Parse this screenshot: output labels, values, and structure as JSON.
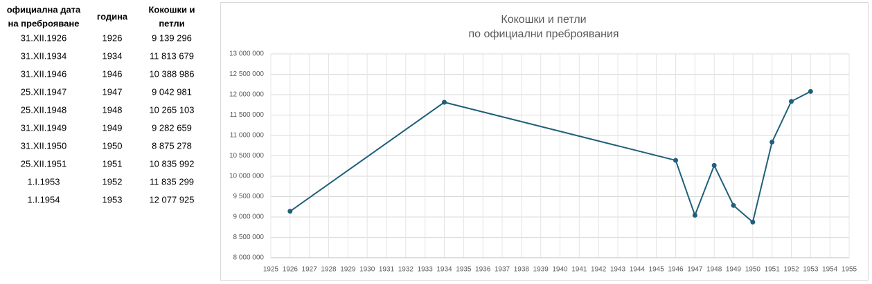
{
  "table": {
    "header": [
      [
        "официална дата",
        "на преброяване"
      ],
      [
        "година"
      ],
      [
        "Кокошки и",
        "петли"
      ]
    ],
    "rows": [
      [
        "31.XII.1926",
        "1926",
        "9 139 296"
      ],
      [
        "31.XII.1934",
        "1934",
        "11 813 679"
      ],
      [
        "31.XII.1946",
        "1946",
        "10 388 986"
      ],
      [
        "25.XII.1947",
        "1947",
        "9 042 981"
      ],
      [
        "25.XII.1948",
        "1948",
        "10 265 103"
      ],
      [
        "31.XII.1949",
        "1949",
        "9 282 659"
      ],
      [
        "31.XII.1950",
        "1950",
        "8 875 278"
      ],
      [
        "25.XII.1951",
        "1951",
        "10 835 992"
      ],
      [
        "1.I.1953",
        "1952",
        "11 835 299"
      ],
      [
        "1.I.1954",
        "1953",
        "12 077 925"
      ]
    ]
  },
  "chart_data": {
    "type": "line",
    "title": "Кокошки и петли",
    "subtitle": "по официални преброявания",
    "x": [
      1926,
      1934,
      1946,
      1947,
      1948,
      1949,
      1950,
      1951,
      1952,
      1953
    ],
    "series": [
      {
        "color": "#1f5f7a",
        "values": [
          9139296,
          11813679,
          10388986,
          9042981,
          10265103,
          9282659,
          8875278,
          10835992,
          11835299,
          12077925
        ]
      }
    ],
    "xlim": [
      1925,
      1955
    ],
    "xticks": [
      1925,
      1926,
      1927,
      1928,
      1929,
      1930,
      1931,
      1932,
      1933,
      1934,
      1935,
      1936,
      1937,
      1938,
      1939,
      1940,
      1941,
      1942,
      1943,
      1944,
      1945,
      1946,
      1947,
      1948,
      1949,
      1950,
      1951,
      1952,
      1953,
      1954,
      1955
    ],
    "ylim": [
      8000000,
      13000000
    ],
    "yticks": [
      {
        "value": 8000000,
        "label": "8 000 000"
      },
      {
        "value": 8500000,
        "label": "8 500 000"
      },
      {
        "value": 9000000,
        "label": "9 000 000"
      },
      {
        "value": 9500000,
        "label": "9 500 000"
      },
      {
        "value": 10000000,
        "label": "10 000 000"
      },
      {
        "value": 10500000,
        "label": "10 500 000"
      },
      {
        "value": 11000000,
        "label": "11 000 000"
      },
      {
        "value": 11500000,
        "label": "11 500 000"
      },
      {
        "value": 12000000,
        "label": "12 000 000"
      },
      {
        "value": 12500000,
        "label": "12 500 000"
      },
      {
        "value": 13000000,
        "label": "13 000 000"
      }
    ],
    "grid": true
  }
}
